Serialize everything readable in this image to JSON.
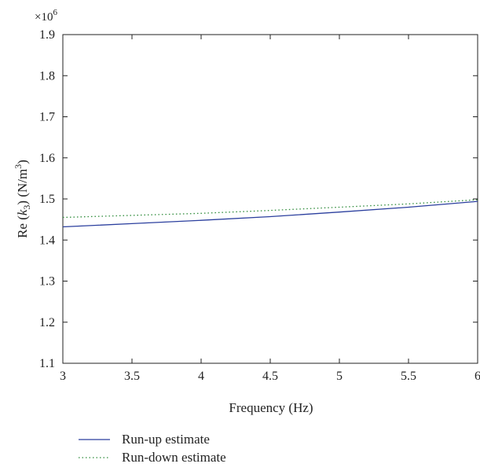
{
  "chart_data": {
    "type": "line",
    "title": "",
    "xlabel": "Frequency (Hz)",
    "ylabel": {
      "prefix": "Re (",
      "var": "k",
      "sub": "3",
      "mid": ") (N/m",
      "sup": "3",
      "suffix": ")"
    },
    "y_multiplier": {
      "base": "×10",
      "exp": "6"
    },
    "xlim": [
      3,
      6
    ],
    "ylim": [
      1.1,
      1.9
    ],
    "x_ticks": [
      3,
      3.5,
      4,
      4.5,
      5,
      5.5,
      6
    ],
    "x_tick_labels": [
      "3",
      "3.5",
      "4",
      "4.5",
      "5",
      "5.5",
      "6"
    ],
    "y_ticks": [
      1.1,
      1.2,
      1.3,
      1.4,
      1.5,
      1.6,
      1.7,
      1.8,
      1.9
    ],
    "y_tick_labels": [
      "1.1",
      "1.2",
      "1.3",
      "1.4",
      "1.5",
      "1.6",
      "1.7",
      "1.8",
      "1.9"
    ],
    "grid": false,
    "legend_position": "bottom-left, below plot",
    "series": [
      {
        "name": "Run-up estimate",
        "style": "solid",
        "color": "#2b3f9e",
        "x": [
          3,
          3.5,
          4,
          4.5,
          5,
          5.5,
          6
        ],
        "values": [
          1.432,
          1.44,
          1.448,
          1.457,
          1.468,
          1.48,
          1.494
        ]
      },
      {
        "name": "Run-down estimate",
        "style": "dotted",
        "color": "#2e8b3a",
        "x": [
          3,
          3.5,
          4,
          4.5,
          5,
          5.5,
          6
        ],
        "values": [
          1.455,
          1.46,
          1.465,
          1.472,
          1.48,
          1.488,
          1.498
        ]
      }
    ]
  }
}
